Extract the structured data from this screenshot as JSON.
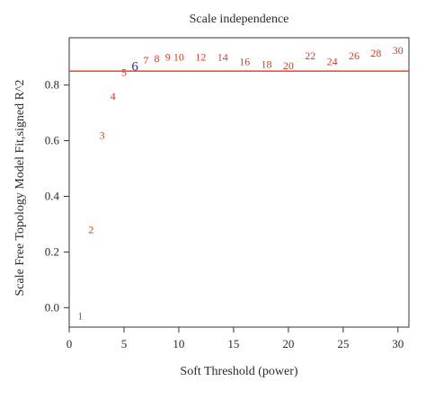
{
  "chart_data": {
    "type": "scatter",
    "title": "Scale independence",
    "xlabel": "Soft Threshold (power)",
    "ylabel": "Scale Free Topology Model Fit,signed R^2",
    "xlim": [
      0,
      31
    ],
    "ylim": [
      -0.07,
      0.97
    ],
    "xticks": [
      0,
      5,
      10,
      15,
      20,
      25,
      30
    ],
    "yticks": [
      0.0,
      0.2,
      0.4,
      0.6,
      0.8
    ],
    "ytick_labels": [
      "0.0",
      "0.2",
      "0.4",
      "0.6",
      "0.8"
    ],
    "threshold_line": {
      "y": 0.85,
      "color": "#e0482a"
    },
    "point_color": "#d23a20",
    "highlight_color": "#2b2b8f",
    "highlight_power": 6,
    "points": [
      {
        "x": 1,
        "y": -0.03,
        "label": "1"
      },
      {
        "x": 2,
        "y": 0.28,
        "label": "2"
      },
      {
        "x": 3,
        "y": 0.62,
        "label": "3"
      },
      {
        "x": 4,
        "y": 0.76,
        "label": "4"
      },
      {
        "x": 5,
        "y": 0.845,
        "label": "5"
      },
      {
        "x": 6,
        "y": 0.865,
        "label": "6"
      },
      {
        "x": 7,
        "y": 0.89,
        "label": "7"
      },
      {
        "x": 8,
        "y": 0.895,
        "label": "8"
      },
      {
        "x": 9,
        "y": 0.9,
        "label": "9"
      },
      {
        "x": 10,
        "y": 0.9,
        "label": "10"
      },
      {
        "x": 12,
        "y": 0.9,
        "label": "12"
      },
      {
        "x": 14,
        "y": 0.9,
        "label": "14"
      },
      {
        "x": 16,
        "y": 0.885,
        "label": "16"
      },
      {
        "x": 18,
        "y": 0.875,
        "label": "18"
      },
      {
        "x": 20,
        "y": 0.87,
        "label": "20"
      },
      {
        "x": 22,
        "y": 0.905,
        "label": "22"
      },
      {
        "x": 24,
        "y": 0.885,
        "label": "24"
      },
      {
        "x": 26,
        "y": 0.905,
        "label": "26"
      },
      {
        "x": 28,
        "y": 0.915,
        "label": "28"
      },
      {
        "x": 30,
        "y": 0.925,
        "label": "30"
      }
    ],
    "grid": false,
    "legend": "none"
  }
}
